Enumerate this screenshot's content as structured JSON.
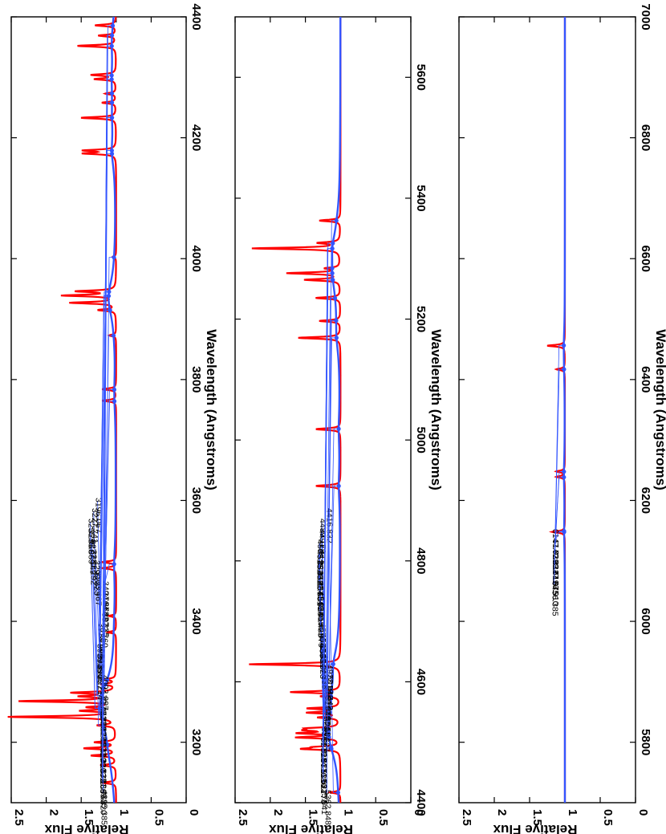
{
  "chart_data": [
    {
      "type": "line",
      "xlabel": "Wavelength (Angstroms)",
      "ylabel": "Relative Flux",
      "xlim": [
        3100,
        4400
      ],
      "ylim": [
        0,
        2.5
      ],
      "x_ticks": [
        "3200",
        "3400",
        "3600",
        "3800",
        "4000",
        "4200",
        "4400"
      ],
      "y_ticks": [
        "0",
        "0.5",
        "1",
        "1.5",
        "2",
        "2.5"
      ],
      "series": [
        {
          "color": "#ff0000",
          "style": "observed emission spectrum"
        },
        {
          "color": "#3355ff",
          "style": "model continuum"
        }
      ],
      "emission_peaks": [
        {
          "x": 3133,
          "y": 1.2
        },
        {
          "x": 3162,
          "y": 1.22
        },
        {
          "x": 3178,
          "y": 1.35
        },
        {
          "x": 3190,
          "y": 1.45
        },
        {
          "x": 3200,
          "y": 1.3
        },
        {
          "x": 3228,
          "y": 1.25
        },
        {
          "x": 3242,
          "y": 2.55
        },
        {
          "x": 3252,
          "y": 1.45
        },
        {
          "x": 3258,
          "y": 1.35
        },
        {
          "x": 3268,
          "y": 2.35
        },
        {
          "x": 3276,
          "y": 1.45
        },
        {
          "x": 3282,
          "y": 1.6
        },
        {
          "x": 3296,
          "y": 1.2
        },
        {
          "x": 3304,
          "y": 1.15
        },
        {
          "x": 3382,
          "y": 1.12
        },
        {
          "x": 3409,
          "y": 1.1
        },
        {
          "x": 3488,
          "y": 1.2
        },
        {
          "x": 3498,
          "y": 1.2
        },
        {
          "x": 3765,
          "y": 1.2
        },
        {
          "x": 3784,
          "y": 1.2
        },
        {
          "x": 3873,
          "y": 1.1
        },
        {
          "x": 3915,
          "y": 1.25
        },
        {
          "x": 3927,
          "y": 1.65
        },
        {
          "x": 3939,
          "y": 1.75
        },
        {
          "x": 3946,
          "y": 1.55
        },
        {
          "x": 4003,
          "y": 1.05
        },
        {
          "x": 4174,
          "y": 1.45
        },
        {
          "x": 4179,
          "y": 1.45
        },
        {
          "x": 4233,
          "y": 1.5
        },
        {
          "x": 4258,
          "y": 1.2
        },
        {
          "x": 4273,
          "y": 1.15
        },
        {
          "x": 4297,
          "y": 1.3
        },
        {
          "x": 4304,
          "y": 1.35
        },
        {
          "x": 4352,
          "y": 1.55
        },
        {
          "x": 4369,
          "y": 1.25
        },
        {
          "x": 4386,
          "y": 1.3
        }
      ],
      "line_markers": [
        {
          "x": 3196.067,
          "label": "3196.067"
        },
        {
          "x": 3227.741,
          "label": "3227.741"
        },
        {
          "x": 3255.866,
          "label": "3255.866"
        },
        {
          "x": 3255.889,
          "label": "3255.889"
        },
        {
          "x": 3277.349,
          "label": "3277.349"
        },
        {
          "x": 3281.292,
          "label": "3281.292"
        },
        {
          "x": 3295.823,
          "label": "3295.823"
        },
        {
          "x": 3303.467,
          "label": "3303.467"
        },
        {
          "x": 3494.664,
          "label": "3494.664"
        },
        {
          "x": 3764.107,
          "label": "3764.107"
        },
        {
          "x": 3783.335,
          "label": "3783.335"
        },
        {
          "x": 3872.76,
          "label": "3872.760"
        },
        {
          "x": 3914.496,
          "label": "3914.496"
        },
        {
          "x": 3914.513,
          "label": "3914.513"
        },
        {
          "x": 3938.29,
          "label": "3938.290"
        },
        {
          "x": 3938.307,
          "label": "3938.307"
        },
        {
          "x": 3945.214,
          "label": "3945.214"
        },
        {
          "x": 4002.097,
          "label": "4002.097"
        },
        {
          "x": 4173.452,
          "label": "4173.452"
        },
        {
          "x": 4178.85,
          "label": "4178.850"
        },
        {
          "x": 4233.124,
          "label": "4233.124"
        },
        {
          "x": 4233.163,
          "label": "4233.163"
        },
        {
          "x": 4258.153,
          "label": "4258.153"
        },
        {
          "x": 4273.313,
          "label": "4273.313"
        },
        {
          "x": 4296.572,
          "label": "4296.572"
        },
        {
          "x": 4303.168,
          "label": "4303.168"
        },
        {
          "x": 4351.763,
          "label": "4351.763"
        },
        {
          "x": 4369.42,
          "label": "4369.420"
        },
        {
          "x": 4385.385,
          "label": "4385.385"
        }
      ]
    },
    {
      "type": "line",
      "xlabel": "Wavelength (Angstroms)",
      "ylabel": "Relative Flux",
      "xlim": [
        4400,
        5700
      ],
      "ylim": [
        0,
        2.5
      ],
      "x_ticks": [
        "4400",
        "4600",
        "4800",
        "5000",
        "5200",
        "5400",
        "5600"
      ],
      "y_ticks": [
        "0",
        "0.5",
        "1",
        "1.5",
        "2",
        "2.5"
      ],
      "series": [
        {
          "color": "#ff0000",
          "style": "observed emission spectrum"
        },
        {
          "color": "#3355ff",
          "style": "model continuum"
        }
      ],
      "emission_peaks": [
        {
          "x": 4417,
          "y": 1.15
        },
        {
          "x": 4489,
          "y": 1.5
        },
        {
          "x": 4492,
          "y": 1.3
        },
        {
          "x": 4508,
          "y": 1.6
        },
        {
          "x": 4515,
          "y": 1.55
        },
        {
          "x": 4520,
          "y": 1.4
        },
        {
          "x": 4523,
          "y": 1.4
        },
        {
          "x": 4541,
          "y": 1.3
        },
        {
          "x": 4549,
          "y": 1.45
        },
        {
          "x": 4556,
          "y": 1.45
        },
        {
          "x": 4576,
          "y": 1.25
        },
        {
          "x": 4583,
          "y": 1.7
        },
        {
          "x": 4629,
          "y": 2.3
        },
        {
          "x": 4924,
          "y": 1.35
        },
        {
          "x": 5018,
          "y": 1.35
        },
        {
          "x": 5169,
          "y": 1.6
        },
        {
          "x": 5197,
          "y": 1.3
        },
        {
          "x": 5235,
          "y": 1.35
        },
        {
          "x": 5265,
          "y": 1.5
        },
        {
          "x": 5276,
          "y": 1.75
        },
        {
          "x": 5284,
          "y": 1.2
        },
        {
          "x": 5317,
          "y": 2.25
        },
        {
          "x": 5326,
          "y": 1.3
        },
        {
          "x": 5363,
          "y": 1.3
        }
      ],
      "line_markers": [
        {
          "x": 4416.832,
          "label": "4416.832"
        },
        {
          "x": 4489.179,
          "label": "4489.179"
        },
        {
          "x": 4491.414,
          "label": "4491.414"
        },
        {
          "x": 4508.284,
          "label": "4508.284"
        },
        {
          "x": 4515.346,
          "label": "4515.346"
        },
        {
          "x": 4520.207,
          "label": "4520.207"
        },
        {
          "x": 4522.631,
          "label": "4522.631"
        },
        {
          "x": 4541.525,
          "label": "4541.525"
        },
        {
          "x": 4549.417,
          "label": "4549.417"
        },
        {
          "x": 4549.463,
          "label": "4549.463"
        },
        {
          "x": 4555.879,
          "label": "4555.879"
        },
        {
          "x": 4576.339,
          "label": "4576.339"
        },
        {
          "x": 4582.831,
          "label": "4582.831"
        },
        {
          "x": 4583.823,
          "label": "4583.823"
        },
        {
          "x": 4629.338,
          "label": "4629.338"
        },
        {
          "x": 4923.94,
          "label": "4923.940"
        },
        {
          "x": 5018.442,
          "label": "5018.442"
        },
        {
          "x": 5169.046,
          "label": "5169.046"
        },
        {
          "x": 5197.594,
          "label": "5197.594"
        },
        {
          "x": 5197.594,
          "label": "5197.594"
        },
        {
          "x": 5234.627,
          "label": "5234.627"
        },
        {
          "x": 5264.818,
          "label": "5264.818"
        },
        {
          "x": 5275.977,
          "label": "5275.977"
        },
        {
          "x": 5284.118,
          "label": "5284.118"
        },
        {
          "x": 5316.621,
          "label": "5316.621"
        },
        {
          "x": 5316.776,
          "label": "5316.776"
        },
        {
          "x": 5325.541,
          "label": "5325.541"
        },
        {
          "x": 5362.848,
          "label": "5362.848"
        }
      ]
    },
    {
      "type": "line",
      "xlabel": "Wavelength (Angstroms)",
      "ylabel": "Relative Flux",
      "xlim": [
        5700,
        7000
      ],
      "ylim": [
        0,
        2.5
      ],
      "x_ticks": [
        "5800",
        "6000",
        "6200",
        "6400",
        "6600",
        "6800",
        "7000"
      ],
      "y_ticks": [
        "0",
        "0.5",
        "1",
        "1.5",
        "2",
        "2.5"
      ],
      "series": [
        {
          "color": "#ff0000",
          "style": "observed emission spectrum"
        },
        {
          "color": "#3355ff",
          "style": "model continuum"
        }
      ],
      "emission_peaks": [
        {
          "x": 6148,
          "y": 1.18
        },
        {
          "x": 6239,
          "y": 1.12
        },
        {
          "x": 6248,
          "y": 1.12
        },
        {
          "x": 6417,
          "y": 1.12
        },
        {
          "x": 6456,
          "y": 1.25
        }
      ],
      "line_markers": [
        {
          "x": 6147.739,
          "label": "6147.739"
        },
        {
          "x": 6149.232,
          "label": "6149.232"
        },
        {
          "x": 6238.419,
          "label": "6238.419"
        },
        {
          "x": 6247.575,
          "label": "6247.575"
        },
        {
          "x": 6416.91,
          "label": "6416.910"
        },
        {
          "x": 6456.385,
          "label": "6456.385"
        }
      ]
    }
  ]
}
